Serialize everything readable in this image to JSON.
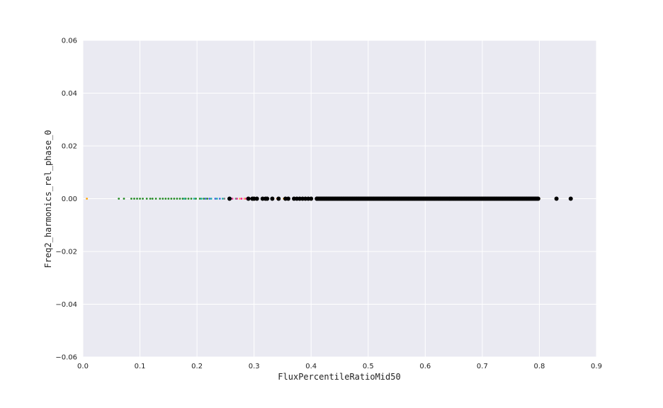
{
  "chart_data": {
    "type": "scatter",
    "title": "",
    "xlabel": "FluxPercentileRatioMid50",
    "ylabel": "Freq2_harmonics_rel_phase_0",
    "xlim": [
      0.0,
      0.9
    ],
    "ylim": [
      -0.06,
      0.06
    ],
    "xticks": [
      "0.0",
      "0.1",
      "0.2",
      "0.3",
      "0.4",
      "0.5",
      "0.6",
      "0.7",
      "0.8",
      "0.9"
    ],
    "yticks": [
      "0.06",
      "0.04",
      "0.02",
      "0.00",
      "−0.02",
      "−0.04",
      "−0.06"
    ],
    "xtick_values": [
      0.0,
      0.1,
      0.2,
      0.3,
      0.4,
      0.5,
      0.6,
      0.7,
      0.8,
      0.9
    ],
    "ytick_values": [
      0.06,
      0.04,
      0.02,
      0.0,
      -0.02,
      -0.04,
      -0.06
    ],
    "grid": true,
    "background_color": "#eaeaf2",
    "grid_color": "#ffffff",
    "series": [
      {
        "color": "#ffa500",
        "size": "small",
        "x": [
          0.007,
          0.352,
          0.8
        ]
      },
      {
        "color": "#228b22",
        "size": "small",
        "x": [
          0.063,
          0.072,
          0.085,
          0.09,
          0.095,
          0.1,
          0.105,
          0.112,
          0.118,
          0.122,
          0.128,
          0.135,
          0.14,
          0.145,
          0.15,
          0.155,
          0.16,
          0.165,
          0.17,
          0.175,
          0.18,
          0.185,
          0.19,
          0.198,
          0.205,
          0.212,
          0.218
        ]
      },
      {
        "color": "#20b2aa",
        "size": "small",
        "x": [
          0.178,
          0.195,
          0.208,
          0.225,
          0.235,
          0.245
        ]
      },
      {
        "color": "#4169e1",
        "size": "small",
        "x": [
          0.215,
          0.222,
          0.232,
          0.24
        ]
      },
      {
        "color": "#ff1493",
        "size": "small",
        "x": [
          0.262,
          0.27,
          0.278,
          0.285
        ]
      },
      {
        "color": "#f4a460",
        "size": "small",
        "x": [
          0.275,
          0.283,
          0.29,
          0.305,
          0.34
        ]
      },
      {
        "color": "#808080",
        "size": "small",
        "x": [
          0.248,
          0.255,
          0.26,
          0.268
        ]
      },
      {
        "color": "#000000",
        "size": "large",
        "x": [
          0.257,
          0.29,
          0.297,
          0.3,
          0.305,
          0.315,
          0.32,
          0.323,
          0.332,
          0.343,
          0.355,
          0.36,
          0.37,
          0.375,
          0.38,
          0.385,
          0.39,
          0.395,
          0.4,
          0.41,
          0.83,
          0.855
        ],
        "range": [
          0.41,
          0.798
        ]
      }
    ]
  }
}
